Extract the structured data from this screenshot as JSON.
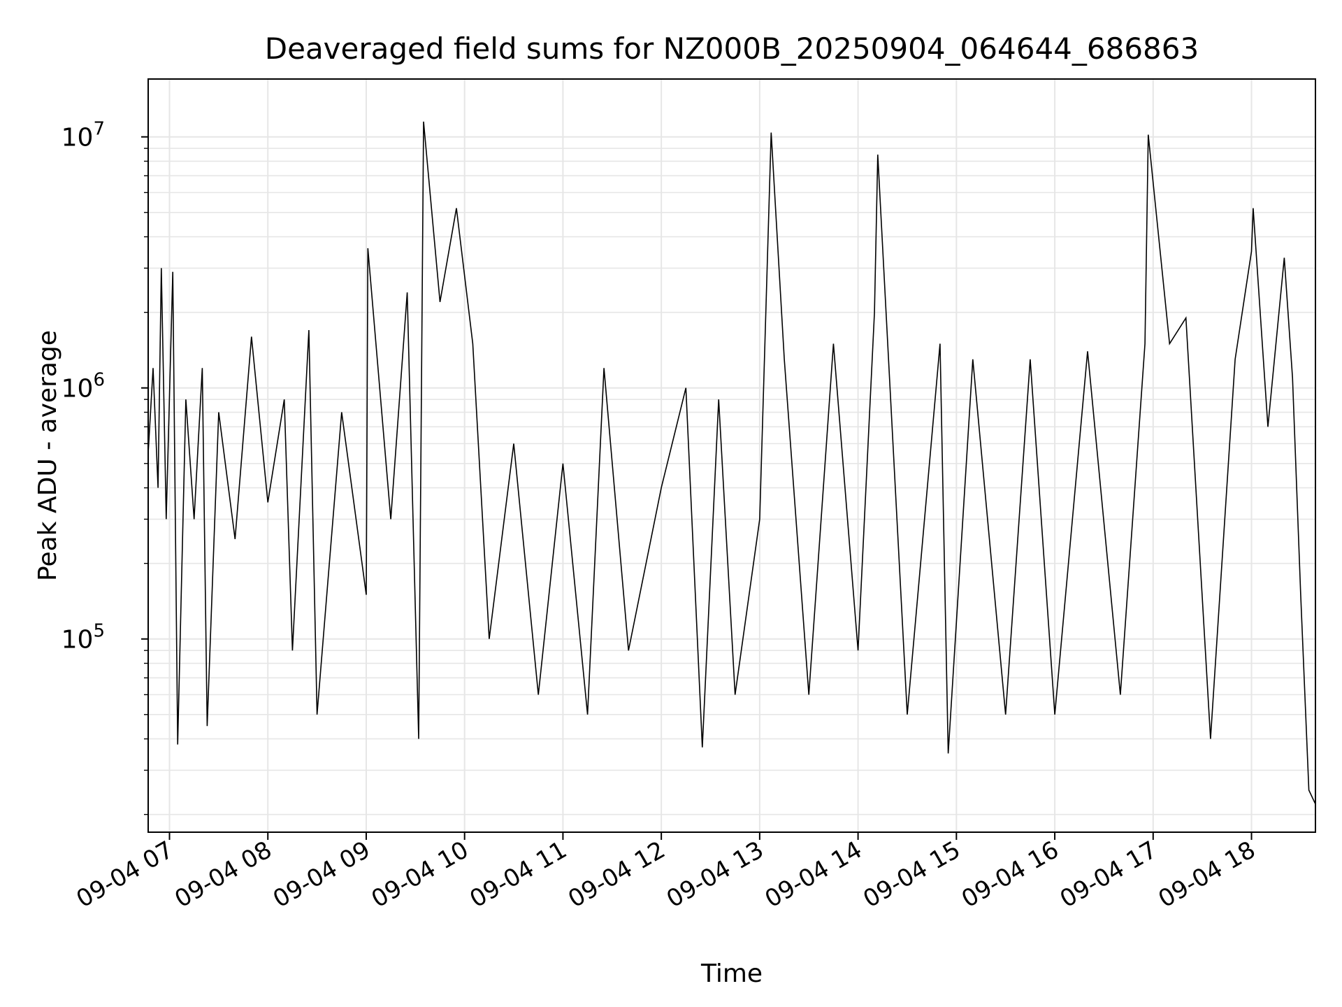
{
  "chart_data": {
    "type": "line",
    "title": "Deaveraged field sums for NZ000B_20250904_064644_686863",
    "xlabel": "Time",
    "ylabel": "Peak ADU - average",
    "yscale": "log",
    "ylim": [
      17000,
      17000000
    ],
    "xlim": [
      "2025-09-04 06:47",
      "2025-09-04 18:39"
    ],
    "grid": true,
    "line_color": "#000000",
    "grid_color": "#e6e6e6",
    "x_ticks": [
      {
        "value": "2025-09-04 07:00",
        "label": "09-04 07"
      },
      {
        "value": "2025-09-04 08:00",
        "label": "09-04 08"
      },
      {
        "value": "2025-09-04 09:00",
        "label": "09-04 09"
      },
      {
        "value": "2025-09-04 10:00",
        "label": "09-04 10"
      },
      {
        "value": "2025-09-04 11:00",
        "label": "09-04 11"
      },
      {
        "value": "2025-09-04 12:00",
        "label": "09-04 12"
      },
      {
        "value": "2025-09-04 13:00",
        "label": "09-04 13"
      },
      {
        "value": "2025-09-04 14:00",
        "label": "09-04 14"
      },
      {
        "value": "2025-09-04 15:00",
        "label": "09-04 15"
      },
      {
        "value": "2025-09-04 16:00",
        "label": "09-04 16"
      },
      {
        "value": "2025-09-04 17:00",
        "label": "09-04 17"
      },
      {
        "value": "2025-09-04 18:00",
        "label": "09-04 18"
      }
    ],
    "y_ticks": [
      {
        "value": 100000,
        "base": "10",
        "exp": "5"
      },
      {
        "value": 1000000,
        "base": "10",
        "exp": "6"
      },
      {
        "value": 10000000,
        "base": "10",
        "exp": "7"
      }
    ],
    "series": [
      {
        "points": [
          [
            "2025-09-04 06:47",
            550000
          ],
          [
            "2025-09-04 06:50",
            1200000
          ],
          [
            "2025-09-04 06:53",
            400000
          ],
          [
            "2025-09-04 06:55",
            3000000
          ],
          [
            "2025-09-04 06:58",
            300000
          ],
          [
            "2025-09-04 07:02",
            2900000
          ],
          [
            "2025-09-04 07:05",
            38000
          ],
          [
            "2025-09-04 07:10",
            900000
          ],
          [
            "2025-09-04 07:15",
            300000
          ],
          [
            "2025-09-04 07:20",
            1200000
          ],
          [
            "2025-09-04 07:23",
            45000
          ],
          [
            "2025-09-04 07:30",
            800000
          ],
          [
            "2025-09-04 07:40",
            250000
          ],
          [
            "2025-09-04 07:50",
            1600000
          ],
          [
            "2025-09-04 08:00",
            350000
          ],
          [
            "2025-09-04 08:10",
            900000
          ],
          [
            "2025-09-04 08:15",
            90000
          ],
          [
            "2025-09-04 08:25",
            1700000
          ],
          [
            "2025-09-04 08:30",
            50000
          ],
          [
            "2025-09-04 08:45",
            800000
          ],
          [
            "2025-09-04 09:00",
            150000
          ],
          [
            "2025-09-04 09:01",
            3600000
          ],
          [
            "2025-09-04 09:15",
            300000
          ],
          [
            "2025-09-04 09:25",
            2400000
          ],
          [
            "2025-09-04 09:32",
            40000
          ],
          [
            "2025-09-04 09:35",
            11500000
          ],
          [
            "2025-09-04 09:45",
            2200000
          ],
          [
            "2025-09-04 09:55",
            5200000
          ],
          [
            "2025-09-04 10:05",
            1500000
          ],
          [
            "2025-09-04 10:15",
            100000
          ],
          [
            "2025-09-04 10:30",
            600000
          ],
          [
            "2025-09-04 10:45",
            60000
          ],
          [
            "2025-09-04 11:00",
            500000
          ],
          [
            "2025-09-04 11:15",
            50000
          ],
          [
            "2025-09-04 11:25",
            1200000
          ],
          [
            "2025-09-04 11:40",
            90000
          ],
          [
            "2025-09-04 12:00",
            400000
          ],
          [
            "2025-09-04 12:15",
            1000000
          ],
          [
            "2025-09-04 12:25",
            37000
          ],
          [
            "2025-09-04 12:35",
            900000
          ],
          [
            "2025-09-04 12:45",
            60000
          ],
          [
            "2025-09-04 13:00",
            300000
          ],
          [
            "2025-09-04 13:07",
            10400000
          ],
          [
            "2025-09-04 13:15",
            1300000
          ],
          [
            "2025-09-04 13:30",
            60000
          ],
          [
            "2025-09-04 13:45",
            1500000
          ],
          [
            "2025-09-04 14:00",
            90000
          ],
          [
            "2025-09-04 14:10",
            2000000
          ],
          [
            "2025-09-04 14:12",
            8500000
          ],
          [
            "2025-09-04 14:30",
            50000
          ],
          [
            "2025-09-04 14:50",
            1500000
          ],
          [
            "2025-09-04 14:55",
            35000
          ],
          [
            "2025-09-04 15:10",
            1300000
          ],
          [
            "2025-09-04 15:30",
            50000
          ],
          [
            "2025-09-04 15:45",
            1300000
          ],
          [
            "2025-09-04 16:00",
            50000
          ],
          [
            "2025-09-04 16:20",
            1400000
          ],
          [
            "2025-09-04 16:40",
            60000
          ],
          [
            "2025-09-04 16:55",
            1500000
          ],
          [
            "2025-09-04 16:57",
            10200000
          ],
          [
            "2025-09-04 17:10",
            1500000
          ],
          [
            "2025-09-04 17:20",
            1900000
          ],
          [
            "2025-09-04 17:35",
            40000
          ],
          [
            "2025-09-04 17:50",
            1300000
          ],
          [
            "2025-09-04 18:00",
            3500000
          ],
          [
            "2025-09-04 18:01",
            5200000
          ],
          [
            "2025-09-04 18:10",
            700000
          ],
          [
            "2025-09-04 18:20",
            3300000
          ],
          [
            "2025-09-04 18:25",
            1100000
          ],
          [
            "2025-09-04 18:30",
            150000
          ],
          [
            "2025-09-04 18:35",
            25000
          ],
          [
            "2025-09-04 18:39",
            22000
          ]
        ]
      }
    ]
  }
}
